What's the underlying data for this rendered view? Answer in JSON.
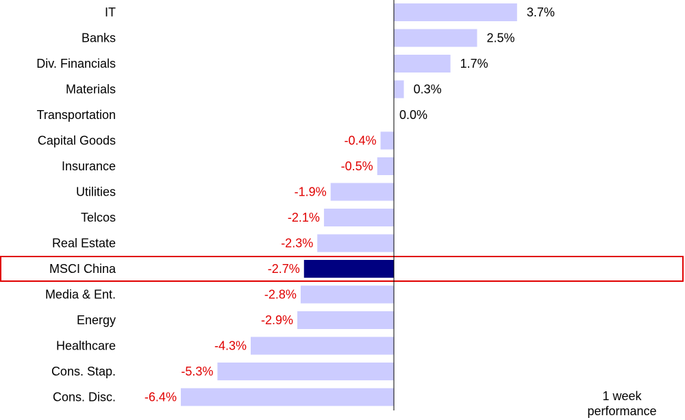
{
  "chart_data": {
    "type": "bar",
    "orientation": "horizontal",
    "categories": [
      "IT",
      "Banks",
      "Div. Financials",
      "Materials",
      "Transportation",
      "Capital Goods",
      "Insurance",
      "Utilities",
      "Telcos",
      "Real Estate",
      "MSCI China",
      "Media & Ent.",
      "Energy",
      "Healthcare",
      "Cons. Stap.",
      "Cons. Disc."
    ],
    "values": [
      3.7,
      2.5,
      1.7,
      0.3,
      0.0,
      -0.4,
      -0.5,
      -1.9,
      -2.1,
      -2.3,
      -2.7,
      -2.8,
      -2.9,
      -4.3,
      -5.3,
      -6.4
    ],
    "value_labels": [
      "3.7%",
      "2.5%",
      "1.7%",
      "0.3%",
      "0.0%",
      "-0.4%",
      "-0.5%",
      "-1.9%",
      "-2.1%",
      "-2.3%",
      "-2.7%",
      "-2.8%",
      "-2.9%",
      "-4.3%",
      "-5.3%",
      "-6.4%"
    ],
    "highlight_category": "MSCI China",
    "caption": [
      "1 week",
      "performance"
    ],
    "grid": false,
    "colors": {
      "bar": "#ccccff",
      "highlight_bar": "#000080",
      "positive_label": "#000000",
      "negative_label": "#e00000",
      "highlight_box": "#e00000",
      "axis": "#000000"
    }
  }
}
